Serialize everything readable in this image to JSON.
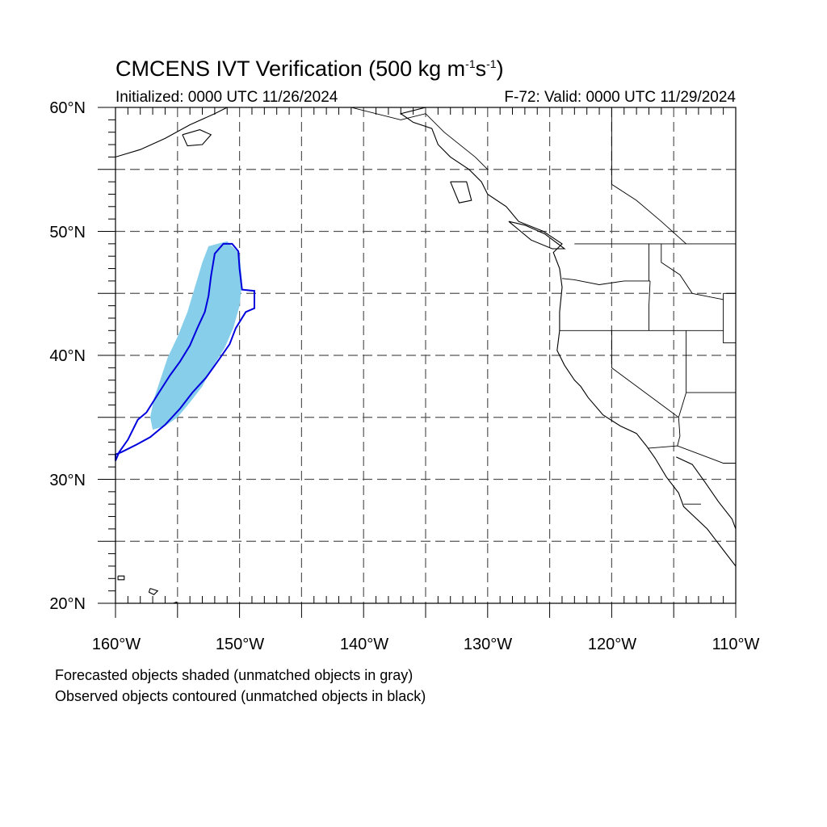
{
  "title": {
    "prefix": "CMCENS IVT Verification (500 kg m",
    "exp1": "-1",
    "mid": "s",
    "exp2": "-1",
    "suffix": ")"
  },
  "initialized": "Initialized: 0000 UTC 11/26/2024",
  "valid": "F-72: Valid: 0000 UTC 11/29/2024",
  "lat_labels": [
    "60°N",
    "50°N",
    "40°N",
    "30°N",
    "20°N"
  ],
  "lon_labels": [
    "160°W",
    "150°W",
    "140°W",
    "130°W",
    "120°W",
    "110°W"
  ],
  "notes": [
    "Forecasted objects shaded (unmatched objects in gray)",
    "Observed objects contoured (unmatched objects in black)"
  ],
  "colors": {
    "forecast_fill": "#87ceeb",
    "observed_contour": "#0000dd",
    "grid": "#555555",
    "coast": "#000000"
  },
  "map_extent": {
    "lon_min": -160,
    "lon_max": -110,
    "lat_min": 20,
    "lat_max": 60
  },
  "forecast_object": {
    "outline": [
      [
        -157.0,
        34.0
      ],
      [
        -156.0,
        34.3
      ],
      [
        -155.0,
        35.0
      ],
      [
        -154.0,
        36.2
      ],
      [
        -153.0,
        37.5
      ],
      [
        -152.2,
        39.0
      ],
      [
        -151.2,
        40.6
      ],
      [
        -150.5,
        42.2
      ],
      [
        -150.0,
        44.0
      ],
      [
        -149.8,
        46.0
      ],
      [
        -150.0,
        48.2
      ],
      [
        -151.0,
        49.2
      ],
      [
        -152.5,
        48.8
      ],
      [
        -153.0,
        47.5
      ],
      [
        -153.6,
        45.5
      ],
      [
        -154.2,
        43.5
      ],
      [
        -155.0,
        41.5
      ],
      [
        -155.8,
        39.8
      ],
      [
        -156.4,
        38.0
      ],
      [
        -156.9,
        36.5
      ],
      [
        -157.2,
        35.0
      ]
    ]
  },
  "observed_object": {
    "outline": [
      [
        -160.0,
        31.5
      ],
      [
        -159.7,
        32.2
      ],
      [
        -159.0,
        33.2
      ],
      [
        -158.2,
        34.8
      ],
      [
        -157.5,
        35.4
      ],
      [
        -156.5,
        37.0
      ],
      [
        -155.6,
        38.4
      ],
      [
        -154.8,
        39.5
      ],
      [
        -154.0,
        40.8
      ],
      [
        -153.4,
        42.2
      ],
      [
        -152.8,
        43.5
      ],
      [
        -152.5,
        44.8
      ],
      [
        -152.3,
        46.4
      ],
      [
        -152.0,
        48.2
      ],
      [
        -151.3,
        49.0
      ],
      [
        -150.6,
        49.0
      ],
      [
        -150.1,
        48.4
      ],
      [
        -150.0,
        47.0
      ],
      [
        -149.8,
        45.3
      ],
      [
        -148.8,
        45.2
      ],
      [
        -148.8,
        43.8
      ],
      [
        -149.5,
        43.5
      ],
      [
        -150.3,
        42.2
      ],
      [
        -150.8,
        40.9
      ],
      [
        -151.7,
        39.6
      ],
      [
        -152.7,
        38.2
      ],
      [
        -153.8,
        37.0
      ],
      [
        -154.8,
        35.7
      ],
      [
        -156.0,
        34.4
      ],
      [
        -157.2,
        33.4
      ],
      [
        -158.3,
        32.8
      ],
      [
        -159.5,
        32.2
      ],
      [
        -160.0,
        32.0
      ]
    ]
  },
  "coastlines": [
    {
      "name": "north-america-west-coast",
      "points": [
        [
          -135.0,
          60.0
        ],
        [
          -137.0,
          59.5
        ],
        [
          -136.0,
          58.8
        ],
        [
          -134.5,
          58.3
        ],
        [
          -134.0,
          57.0
        ],
        [
          -133.0,
          56.0
        ],
        [
          -131.5,
          55.0
        ],
        [
          -130.5,
          54.0
        ],
        [
          -130.0,
          53.0
        ],
        [
          -128.5,
          52.0
        ],
        [
          -127.5,
          50.8
        ],
        [
          -125.5,
          50.0
        ],
        [
          -124.0,
          49.0
        ],
        [
          -124.7,
          48.3
        ],
        [
          -124.2,
          47.0
        ],
        [
          -124.0,
          45.5
        ],
        [
          -124.2,
          43.5
        ],
        [
          -124.2,
          42.0
        ],
        [
          -124.4,
          40.4
        ],
        [
          -123.8,
          39.2
        ],
        [
          -123.0,
          38.0
        ],
        [
          -122.5,
          37.5
        ],
        [
          -121.9,
          36.6
        ],
        [
          -120.7,
          35.2
        ],
        [
          -119.3,
          34.3
        ],
        [
          -118.0,
          33.7
        ],
        [
          -117.2,
          32.7
        ],
        [
          -116.5,
          31.7
        ],
        [
          -115.6,
          30.2
        ],
        [
          -114.6,
          28.9
        ],
        [
          -114.2,
          27.8
        ],
        [
          -112.3,
          26.0
        ],
        [
          -111.0,
          24.3
        ],
        [
          -110.0,
          23.0
        ]
      ]
    },
    {
      "name": "gulf-of-california-east-shore",
      "points": [
        [
          -114.8,
          31.8
        ],
        [
          -113.5,
          31.2
        ],
        [
          -112.5,
          29.8
        ],
        [
          -111.4,
          28.2
        ],
        [
          -110.3,
          26.8
        ],
        [
          -110.0,
          26.0
        ]
      ]
    },
    {
      "name": "alaska-peninsula",
      "points": [
        [
          -160.0,
          56.0
        ],
        [
          -158.0,
          56.6
        ],
        [
          -156.0,
          57.5
        ],
        [
          -154.0,
          58.6
        ],
        [
          -152.0,
          59.5
        ],
        [
          -151.0,
          60.0
        ]
      ]
    },
    {
      "name": "kodiak-island",
      "points": [
        [
          -154.6,
          57.8
        ],
        [
          -153.2,
          58.2
        ],
        [
          -152.3,
          57.8
        ],
        [
          -153.0,
          57.0
        ],
        [
          -154.2,
          56.9
        ],
        [
          -154.6,
          57.8
        ]
      ]
    },
    {
      "name": "hawaii-big-island",
      "points": [
        [
          -156.0,
          19.7
        ],
        [
          -155.1,
          20.1
        ],
        [
          -154.9,
          19.5
        ],
        [
          -155.6,
          19.0
        ],
        [
          -156.0,
          19.7
        ]
      ]
    },
    {
      "name": "hawaii-kauai",
      "points": [
        [
          -159.8,
          22.2
        ],
        [
          -159.3,
          22.2
        ],
        [
          -159.3,
          21.9
        ],
        [
          -159.8,
          21.9
        ],
        [
          -159.8,
          22.2
        ]
      ]
    },
    {
      "name": "hawaii-maui",
      "points": [
        [
          -157.2,
          21.2
        ],
        [
          -156.6,
          21.0
        ],
        [
          -156.9,
          20.7
        ],
        [
          -157.3,
          20.9
        ],
        [
          -157.2,
          21.2
        ]
      ]
    },
    {
      "name": "vancouver-island",
      "points": [
        [
          -128.3,
          50.8
        ],
        [
          -127.0,
          50.5
        ],
        [
          -125.4,
          49.8
        ],
        [
          -123.8,
          48.6
        ],
        [
          -124.8,
          48.6
        ],
        [
          -126.5,
          49.3
        ],
        [
          -128.3,
          50.8
        ]
      ]
    },
    {
      "name": "haida-gwaii",
      "points": [
        [
          -133.0,
          54.0
        ],
        [
          -131.7,
          54.0
        ],
        [
          -131.3,
          52.5
        ],
        [
          -132.3,
          52.3
        ],
        [
          -133.0,
          54.0
        ]
      ]
    }
  ],
  "borders": [
    {
      "name": "canada-us-border",
      "points": [
        [
          -123.0,
          49.0
        ],
        [
          -110.0,
          49.0
        ]
      ]
    },
    {
      "name": "bc-alberta-border",
      "points": [
        [
          -120.0,
          60.0
        ],
        [
          -120.0,
          53.8
        ],
        [
          -118.0,
          52.5
        ],
        [
          -116.0,
          50.8
        ],
        [
          -114.0,
          49.0
        ]
      ]
    },
    {
      "name": "alaska-bc-border",
      "points": [
        [
          -141.0,
          60.0
        ],
        [
          -137.0,
          59.0
        ],
        [
          -135.0,
          59.5
        ],
        [
          -133.5,
          58.0
        ],
        [
          -131.0,
          56.0
        ],
        [
          -130.0,
          55.0
        ]
      ]
    },
    {
      "name": "wa-or-border",
      "points": [
        [
          -124.0,
          46.2
        ],
        [
          -123.0,
          46.1
        ],
        [
          -121.0,
          45.7
        ],
        [
          -119.0,
          46.0
        ],
        [
          -116.9,
          46.0
        ]
      ]
    },
    {
      "name": "or-ca-border",
      "points": [
        [
          -124.2,
          42.0
        ],
        [
          -117.0,
          42.0
        ],
        [
          -111.0,
          42.0
        ]
      ]
    },
    {
      "name": "wa-id-border",
      "points": [
        [
          -117.0,
          49.0
        ],
        [
          -117.0,
          46.0
        ]
      ]
    },
    {
      "name": "id-mt-border",
      "points": [
        [
          -116.0,
          49.0
        ],
        [
          -116.0,
          47.5
        ],
        [
          -114.5,
          46.5
        ],
        [
          -113.5,
          45.0
        ],
        [
          -111.0,
          44.5
        ]
      ]
    },
    {
      "name": "or-id-border",
      "points": [
        [
          -116.9,
          46.0
        ],
        [
          -117.0,
          44.0
        ],
        [
          -117.0,
          42.0
        ]
      ]
    },
    {
      "name": "ca-nv-border",
      "points": [
        [
          -120.0,
          42.0
        ],
        [
          -120.0,
          39.0
        ],
        [
          -114.6,
          35.0
        ]
      ]
    },
    {
      "name": "nv-ut-border",
      "points": [
        [
          -114.0,
          42.0
        ],
        [
          -114.0,
          37.0
        ]
      ]
    },
    {
      "name": "nv-az-border",
      "points": [
        [
          -114.0,
          37.0
        ],
        [
          -114.6,
          35.0
        ]
      ]
    },
    {
      "name": "ut-az-border",
      "points": [
        [
          -114.0,
          37.0
        ],
        [
          -110.0,
          37.0
        ]
      ]
    },
    {
      "name": "mt-wy-border",
      "points": [
        [
          -111.0,
          45.0
        ],
        [
          -110.0,
          45.0
        ]
      ]
    },
    {
      "name": "wy-ut-border",
      "points": [
        [
          -111.0,
          45.0
        ],
        [
          -111.0,
          41.0
        ],
        [
          -110.0,
          41.0
        ]
      ]
    },
    {
      "name": "ca-az-border",
      "points": [
        [
          -114.6,
          35.0
        ],
        [
          -114.5,
          33.5
        ],
        [
          -114.7,
          32.7
        ]
      ]
    },
    {
      "name": "us-mexico-border",
      "points": [
        [
          -117.1,
          32.5
        ],
        [
          -114.7,
          32.7
        ],
        [
          -111.0,
          31.3
        ],
        [
          -110.0,
          31.3
        ]
      ]
    },
    {
      "name": "baja-state-border",
      "points": [
        [
          -114.2,
          28.0
        ],
        [
          -112.8,
          28.0
        ]
      ]
    },
    {
      "name": "sonora-sinaloa-border",
      "points": [
        [
          -109.0,
          27.0
        ],
        [
          -110.0,
          27.5
        ]
      ]
    }
  ]
}
